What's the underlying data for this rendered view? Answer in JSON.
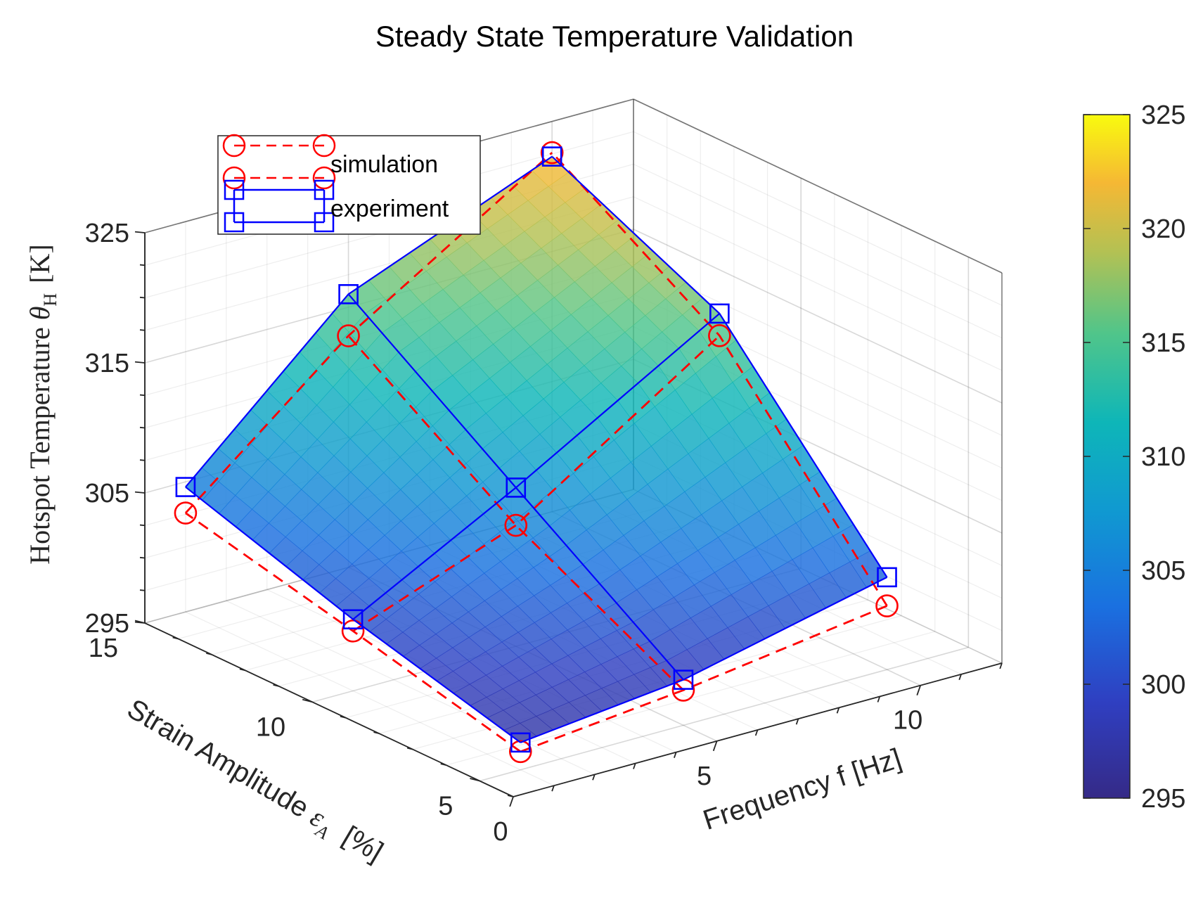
{
  "chart_data": {
    "type": "surface3d",
    "title": "Steady State Temperature Validation",
    "xlabel": "Frequency f [Hz]",
    "ylabel": {
      "main": "Strain Amplitude ",
      "symbol": "ε",
      "subscript": "A",
      "unit": "[%]"
    },
    "zlabel": {
      "main": "Hotspot Temperature ",
      "symbol": "θ",
      "subscript": "H",
      "unit": "[K]"
    },
    "xlim": [
      0,
      12
    ],
    "ylim": [
      4,
      15
    ],
    "zlim": [
      295,
      325
    ],
    "xticks": [
      "0",
      "5",
      "10"
    ],
    "yticks": [
      "5",
      "10",
      "15"
    ],
    "zticks": [
      "295",
      "305",
      "315",
      "325"
    ],
    "grid": true,
    "legend": {
      "location": "top-left",
      "entries": [
        "simulation",
        "experiment"
      ]
    },
    "colorbar": {
      "colormap": "parula",
      "min": 295,
      "max": 325,
      "ticks": [
        "295",
        "300",
        "305",
        "310",
        "315",
        "320",
        "325"
      ]
    },
    "frequency": [
      1,
      5,
      10
    ],
    "strain": [
      5,
      10,
      15
    ],
    "series": [
      {
        "name": "simulation",
        "style": "dashed red line with circle markers",
        "color": "#ff0000",
        "z": [
          [
            296.4,
            299.6,
            302.6
          ],
          [
            297.7,
            304.3,
            312.8
          ],
          [
            299.9,
            314.6,
            322.6
          ]
        ]
      },
      {
        "name": "experiment",
        "style": "solid blue line with square markers",
        "color": "#0000ff",
        "z": [
          [
            297.1,
            300.5,
            304.6
          ],
          [
            298.5,
            307.2,
            316.0
          ],
          [
            302.1,
            316.3,
            322.3
          ]
        ]
      }
    ]
  }
}
